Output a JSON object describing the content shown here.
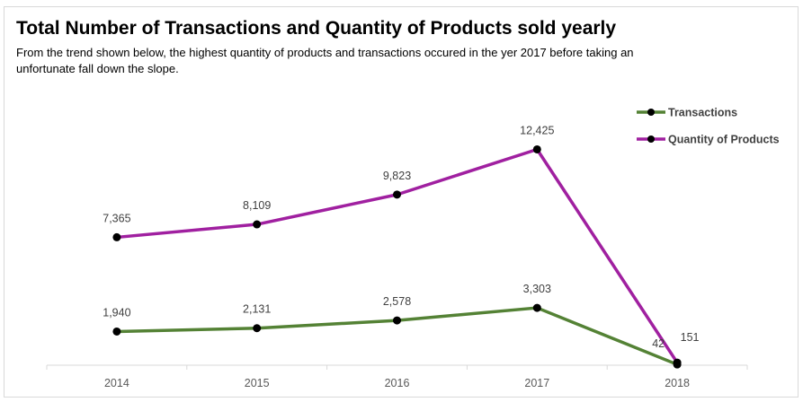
{
  "chart_data": {
    "type": "line",
    "title": "Total Number of Transactions and Quantity of Products sold yearly",
    "subtitle": "From the trend shown below, the highest quantity of products and transactions occured in the yer 2017 before taking an unfortunate fall down the slope.",
    "categories": [
      "2014",
      "2015",
      "2016",
      "2017",
      "2018"
    ],
    "series": [
      {
        "name": "Transactions",
        "values": [
          1940,
          2131,
          2578,
          3303,
          42
        ],
        "labels": [
          "1,940",
          "2,131",
          "2,578",
          "3,303",
          "42"
        ],
        "color": "#548235"
      },
      {
        "name": "Quantity of Products",
        "values": [
          7365,
          8109,
          9823,
          12425,
          151
        ],
        "labels": [
          "7,365",
          "8,109",
          "9,823",
          "12,425",
          "151"
        ],
        "color": "#A020A0"
      }
    ],
    "ylim": [
      0,
      14000
    ],
    "grid": false,
    "legend": "top-right",
    "marker_color": "#000000"
  }
}
